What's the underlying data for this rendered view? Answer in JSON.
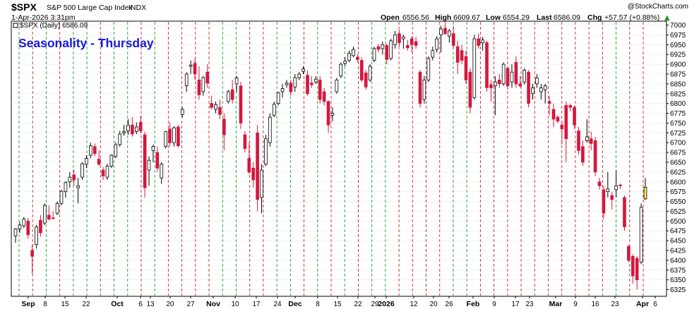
{
  "header": {
    "symbol": "$SPX",
    "name": "S&P 500 Large Cap Index",
    "exchange": "INDX",
    "datetime": "1-Apr-2026 3:31pm",
    "watermark": "@StockCharts.com",
    "quote": {
      "open_label": "Open",
      "open": "6556.56",
      "high_label": "High",
      "high": "6609.67",
      "low_label": "Low",
      "low": "6554.29",
      "last_label": "Last",
      "last": "6586.09",
      "chg_label": "Chg",
      "chg": "+57.57 (+0.88%)",
      "chg_arrow": "▲"
    }
  },
  "legend": {
    "label": "$SPX (Daily) 6586.09"
  },
  "chart_data": {
    "type": "candlestick",
    "title": "Seasonality - Thursday",
    "ylim": [
      6308,
      7010
    ],
    "yticks": [
      6325,
      6350,
      6375,
      6400,
      6425,
      6450,
      6475,
      6500,
      6525,
      6550,
      6575,
      6600,
      6625,
      6650,
      6675,
      6700,
      6725,
      6750,
      6775,
      6800,
      6825,
      6850,
      6875,
      6900,
      6925,
      6950,
      6975,
      7000
    ],
    "xticks": [
      {
        "label": "Sep",
        "bold": true
      },
      {
        "label": "8",
        "bold": false
      },
      {
        "label": "15",
        "bold": false
      },
      {
        "label": "22",
        "bold": false
      },
      {
        "label": "Oct",
        "bold": true
      },
      {
        "label": "6",
        "bold": false
      },
      {
        "label": "13",
        "bold": false
      },
      {
        "label": "20",
        "bold": false
      },
      {
        "label": "27",
        "bold": false
      },
      {
        "label": "Nov",
        "bold": true
      },
      {
        "label": "10",
        "bold": false
      },
      {
        "label": "17",
        "bold": false
      },
      {
        "label": "24",
        "bold": false
      },
      {
        "label": "Dec",
        "bold": true
      },
      {
        "label": "8",
        "bold": false
      },
      {
        "label": "15",
        "bold": false
      },
      {
        "label": "22",
        "bold": false
      },
      {
        "label": "29",
        "bold": false
      },
      {
        "label": "2026",
        "bold": true
      },
      {
        "label": "12",
        "bold": false
      },
      {
        "label": "20",
        "bold": false
      },
      {
        "label": "26",
        "bold": false
      },
      {
        "label": "Feb",
        "bold": true
      },
      {
        "label": "9",
        "bold": false
      },
      {
        "label": "17",
        "bold": false
      },
      {
        "label": "23",
        "bold": false
      },
      {
        "label": "Mar",
        "bold": true
      },
      {
        "label": "9",
        "bold": false
      },
      {
        "label": "16",
        "bold": false
      },
      {
        "label": "23",
        "bold": false
      },
      {
        "label": "Apr",
        "bold": true
      },
      {
        "label": "6",
        "bold": false
      }
    ],
    "colors": {
      "up": "#ffffff",
      "up_outline": "#000000",
      "down": "#d5173e",
      "highlight": "#ffe94d",
      "green_line": "#1e9a1e",
      "red_line": "#cc1f1f",
      "title": "#1a1ad6",
      "grid": "#d9d9d9"
    },
    "candles": [
      {
        "o": 6462,
        "h": 6482,
        "l": 6445,
        "c": 6480
      },
      {
        "o": 6480,
        "h": 6498,
        "l": 6470,
        "c": 6490
      },
      {
        "o": 6488,
        "h": 6510,
        "l": 6482,
        "c": 6505
      },
      {
        "o": 6500,
        "h": 6508,
        "l": 6455,
        "c": 6465
      },
      {
        "o": 6425,
        "h": 6440,
        "l": 6365,
        "c": 6410
      },
      {
        "o": 6440,
        "h": 6490,
        "l": 6430,
        "c": 6485
      },
      {
        "o": 6502,
        "h": 6515,
        "l": 6460,
        "c": 6470
      },
      {
        "o": 6495,
        "h": 6545,
        "l": 6490,
        "c": 6540
      },
      {
        "o": 6515,
        "h": 6540,
        "l": 6502,
        "c": 6505
      },
      {
        "o": 6508,
        "h": 6525,
        "l": 6505,
        "c": 6506
      },
      {
        "o": 6520,
        "h": 6550,
        "l": 6515,
        "c": 6545
      },
      {
        "o": 6545,
        "h": 6580,
        "l": 6540,
        "c": 6576
      },
      {
        "o": 6575,
        "h": 6602,
        "l": 6560,
        "c": 6598
      },
      {
        "o": 6600,
        "h": 6625,
        "l": 6585,
        "c": 6612
      },
      {
        "o": 6618,
        "h": 6632,
        "l": 6590,
        "c": 6605
      },
      {
        "o": 6585,
        "h": 6610,
        "l": 6545,
        "c": 6590
      },
      {
        "o": 6612,
        "h": 6650,
        "l": 6605,
        "c": 6646
      },
      {
        "o": 6645,
        "h": 6668,
        "l": 6635,
        "c": 6660
      },
      {
        "o": 6668,
        "h": 6700,
        "l": 6660,
        "c": 6692
      },
      {
        "o": 6690,
        "h": 6698,
        "l": 6665,
        "c": 6672
      },
      {
        "o": 6658,
        "h": 6680,
        "l": 6640,
        "c": 6645
      },
      {
        "o": 6630,
        "h": 6638,
        "l": 6605,
        "c": 6615
      },
      {
        "o": 6612,
        "h": 6646,
        "l": 6605,
        "c": 6640
      },
      {
        "o": 6640,
        "h": 6670,
        "l": 6635,
        "c": 6668
      },
      {
        "o": 6665,
        "h": 6700,
        "l": 6660,
        "c": 6695
      },
      {
        "o": 6695,
        "h": 6730,
        "l": 6690,
        "c": 6722
      },
      {
        "o": 6725,
        "h": 6745,
        "l": 6718,
        "c": 6728
      },
      {
        "o": 6730,
        "h": 6760,
        "l": 6720,
        "c": 6745
      },
      {
        "o": 6745,
        "h": 6765,
        "l": 6715,
        "c": 6722
      },
      {
        "o": 6728,
        "h": 6752,
        "l": 6722,
        "c": 6740
      },
      {
        "o": 6752,
        "h": 6768,
        "l": 6725,
        "c": 6730
      },
      {
        "o": 6720,
        "h": 6728,
        "l": 6560,
        "c": 6585
      },
      {
        "o": 6630,
        "h": 6665,
        "l": 6590,
        "c": 6655
      },
      {
        "o": 6680,
        "h": 6695,
        "l": 6650,
        "c": 6690
      },
      {
        "o": 6675,
        "h": 6690,
        "l": 6625,
        "c": 6635
      },
      {
        "o": 6610,
        "h": 6650,
        "l": 6595,
        "c": 6645
      },
      {
        "o": 6690,
        "h": 6730,
        "l": 6685,
        "c": 6728
      },
      {
        "o": 6735,
        "h": 6752,
        "l": 6690,
        "c": 6700
      },
      {
        "o": 6700,
        "h": 6742,
        "l": 6690,
        "c": 6738
      },
      {
        "o": 6740,
        "h": 6745,
        "l": 6688,
        "c": 6692
      },
      {
        "o": 6772,
        "h": 6790,
        "l": 6765,
        "c": 6785
      },
      {
        "o": 6845,
        "h": 6880,
        "l": 6830,
        "c": 6875
      },
      {
        "o": 6895,
        "h": 6910,
        "l": 6875,
        "c": 6898
      },
      {
        "o": 6902,
        "h": 6915,
        "l": 6860,
        "c": 6875
      },
      {
        "o": 6860,
        "h": 6895,
        "l": 6810,
        "c": 6822
      },
      {
        "o": 6830,
        "h": 6870,
        "l": 6820,
        "c": 6866
      },
      {
        "o": 6880,
        "h": 6900,
        "l": 6840,
        "c": 6852
      },
      {
        "o": 6800,
        "h": 6820,
        "l": 6785,
        "c": 6790
      },
      {
        "o": 6785,
        "h": 6805,
        "l": 6775,
        "c": 6797
      },
      {
        "o": 6790,
        "h": 6810,
        "l": 6760,
        "c": 6772
      },
      {
        "o": 6760,
        "h": 6775,
        "l": 6680,
        "c": 6720
      },
      {
        "o": 6805,
        "h": 6835,
        "l": 6800,
        "c": 6830
      },
      {
        "o": 6835,
        "h": 6860,
        "l": 6800,
        "c": 6810
      },
      {
        "o": 6850,
        "h": 6870,
        "l": 6830,
        "c": 6865
      },
      {
        "o": 6845,
        "h": 6855,
        "l": 6735,
        "c": 6750
      },
      {
        "o": 6720,
        "h": 6730,
        "l": 6675,
        "c": 6685
      },
      {
        "o": 6660,
        "h": 6700,
        "l": 6620,
        "c": 6625
      },
      {
        "o": 6635,
        "h": 6650,
        "l": 6585,
        "c": 6605
      },
      {
        "o": 6725,
        "h": 6745,
        "l": 6525,
        "c": 6555
      },
      {
        "o": 6560,
        "h": 6645,
        "l": 6520,
        "c": 6630
      },
      {
        "o": 6645,
        "h": 6720,
        "l": 6640,
        "c": 6710
      },
      {
        "o": 6700,
        "h": 6775,
        "l": 6690,
        "c": 6765
      },
      {
        "o": 6770,
        "h": 6805,
        "l": 6765,
        "c": 6798
      },
      {
        "o": 6800,
        "h": 6830,
        "l": 6795,
        "c": 6827
      },
      {
        "o": 6830,
        "h": 6850,
        "l": 6815,
        "c": 6838
      },
      {
        "o": 6848,
        "h": 6860,
        "l": 6840,
        "c": 6852
      },
      {
        "o": 6852,
        "h": 6860,
        "l": 6820,
        "c": 6830
      },
      {
        "o": 6842,
        "h": 6875,
        "l": 6830,
        "c": 6866
      },
      {
        "o": 6866,
        "h": 6880,
        "l": 6860,
        "c": 6875
      },
      {
        "o": 6882,
        "h": 6895,
        "l": 6875,
        "c": 6888
      },
      {
        "o": 6872,
        "h": 6885,
        "l": 6820,
        "c": 6825
      },
      {
        "o": 6852,
        "h": 6870,
        "l": 6840,
        "c": 6848
      },
      {
        "o": 6855,
        "h": 6870,
        "l": 6850,
        "c": 6862
      },
      {
        "o": 6860,
        "h": 6870,
        "l": 6800,
        "c": 6810
      },
      {
        "o": 6830,
        "h": 6840,
        "l": 6795,
        "c": 6805
      },
      {
        "o": 6805,
        "h": 6808,
        "l": 6725,
        "c": 6745
      },
      {
        "o": 6770,
        "h": 6790,
        "l": 6755,
        "c": 6775
      },
      {
        "o": 6830,
        "h": 6865,
        "l": 6825,
        "c": 6860
      },
      {
        "o": 6870,
        "h": 6905,
        "l": 6865,
        "c": 6900
      },
      {
        "o": 6902,
        "h": 6918,
        "l": 6895,
        "c": 6908
      },
      {
        "o": 6910,
        "h": 6935,
        "l": 6905,
        "c": 6928
      },
      {
        "o": 6922,
        "h": 6945,
        "l": 6918,
        "c": 6938
      },
      {
        "o": 6918,
        "h": 6925,
        "l": 6905,
        "c": 6912
      },
      {
        "o": 6910,
        "h": 6918,
        "l": 6855,
        "c": 6860
      },
      {
        "o": 6878,
        "h": 6885,
        "l": 6835,
        "c": 6842
      },
      {
        "o": 6860,
        "h": 6900,
        "l": 6855,
        "c": 6895
      },
      {
        "o": 6910,
        "h": 6945,
        "l": 6905,
        "c": 6940
      },
      {
        "o": 6945,
        "h": 6952,
        "l": 6930,
        "c": 6938
      },
      {
        "o": 6940,
        "h": 6958,
        "l": 6925,
        "c": 6950
      },
      {
        "o": 6948,
        "h": 6952,
        "l": 6900,
        "c": 6912
      },
      {
        "o": 6915,
        "h": 6965,
        "l": 6910,
        "c": 6960
      },
      {
        "o": 6950,
        "h": 6985,
        "l": 6940,
        "c": 6975
      },
      {
        "o": 6978,
        "h": 6988,
        "l": 6945,
        "c": 6955
      },
      {
        "o": 6965,
        "h": 6975,
        "l": 6940,
        "c": 6970
      },
      {
        "o": 6948,
        "h": 6962,
        "l": 6935,
        "c": 6942
      },
      {
        "o": 6965,
        "h": 6972,
        "l": 6930,
        "c": 6950
      },
      {
        "o": 6958,
        "h": 6970,
        "l": 6940,
        "c": 6948
      },
      {
        "o": 6880,
        "h": 6885,
        "l": 6790,
        "c": 6800
      },
      {
        "o": 6810,
        "h": 6870,
        "l": 6800,
        "c": 6860
      },
      {
        "o": 6860,
        "h": 6920,
        "l": 6855,
        "c": 6915
      },
      {
        "o": 6918,
        "h": 6945,
        "l": 6910,
        "c": 6935
      },
      {
        "o": 6938,
        "h": 6972,
        "l": 6930,
        "c": 6965
      },
      {
        "o": 6975,
        "h": 6998,
        "l": 6930,
        "c": 6990
      },
      {
        "o": 6992,
        "h": 7008,
        "l": 6975,
        "c": 6978
      },
      {
        "o": 6972,
        "h": 6990,
        "l": 6955,
        "c": 6985
      },
      {
        "o": 6978,
        "h": 6998,
        "l": 6940,
        "c": 6948
      },
      {
        "o": 6945,
        "h": 6960,
        "l": 6875,
        "c": 6905
      },
      {
        "o": 6935,
        "h": 6950,
        "l": 6900,
        "c": 6910
      },
      {
        "o": 6920,
        "h": 6935,
        "l": 6850,
        "c": 6860
      },
      {
        "o": 6880,
        "h": 6890,
        "l": 6775,
        "c": 6790
      },
      {
        "o": 6815,
        "h": 6975,
        "l": 6810,
        "c": 6965
      },
      {
        "o": 6965,
        "h": 6978,
        "l": 6940,
        "c": 6948
      },
      {
        "o": 6955,
        "h": 6970,
        "l": 6935,
        "c": 6962
      },
      {
        "o": 6955,
        "h": 6960,
        "l": 6830,
        "c": 6840
      },
      {
        "o": 6848,
        "h": 6860,
        "l": 6805,
        "c": 6840
      },
      {
        "o": 6845,
        "h": 6870,
        "l": 6770,
        "c": 6855
      },
      {
        "o": 6860,
        "h": 6875,
        "l": 6840,
        "c": 6850
      },
      {
        "o": 6850,
        "h": 6905,
        "l": 6845,
        "c": 6900
      },
      {
        "o": 6890,
        "h": 6895,
        "l": 6835,
        "c": 6845
      },
      {
        "o": 6855,
        "h": 6900,
        "l": 6840,
        "c": 6880
      },
      {
        "o": 6905,
        "h": 6920,
        "l": 6840,
        "c": 6850
      },
      {
        "o": 6850,
        "h": 6870,
        "l": 6840,
        "c": 6845
      },
      {
        "o": 6855,
        "h": 6890,
        "l": 6848,
        "c": 6885
      },
      {
        "o": 6880,
        "h": 6885,
        "l": 6790,
        "c": 6800
      },
      {
        "o": 6825,
        "h": 6850,
        "l": 6810,
        "c": 6840
      },
      {
        "o": 6850,
        "h": 6875,
        "l": 6840,
        "c": 6865
      },
      {
        "o": 6830,
        "h": 6850,
        "l": 6810,
        "c": 6840
      },
      {
        "o": 6835,
        "h": 6850,
        "l": 6800,
        "c": 6845
      },
      {
        "o": 6805,
        "h": 6820,
        "l": 6770,
        "c": 6800
      },
      {
        "o": 6785,
        "h": 6800,
        "l": 6740,
        "c": 6760
      },
      {
        "o": 6765,
        "h": 6770,
        "l": 6750,
        "c": 6755
      },
      {
        "o": 6745,
        "h": 6755,
        "l": 6695,
        "c": 6735
      },
      {
        "o": 6795,
        "h": 6805,
        "l": 6650,
        "c": 6710
      },
      {
        "o": 6795,
        "h": 6800,
        "l": 6780,
        "c": 6790
      },
      {
        "o": 6790,
        "h": 6795,
        "l": 6735,
        "c": 6745
      },
      {
        "o": 6730,
        "h": 6740,
        "l": 6670,
        "c": 6680
      },
      {
        "o": 6690,
        "h": 6705,
        "l": 6640,
        "c": 6650
      },
      {
        "o": 6705,
        "h": 6760,
        "l": 6700,
        "c": 6715
      },
      {
        "o": 6710,
        "h": 6728,
        "l": 6680,
        "c": 6698
      },
      {
        "o": 6705,
        "h": 6715,
        "l": 6615,
        "c": 6625
      },
      {
        "o": 6600,
        "h": 6610,
        "l": 6580,
        "c": 6590
      },
      {
        "o": 6580,
        "h": 6590,
        "l": 6505,
        "c": 6520
      },
      {
        "o": 6575,
        "h": 6625,
        "l": 6560,
        "c": 6582
      },
      {
        "o": 6565,
        "h": 6575,
        "l": 6530,
        "c": 6555
      },
      {
        "o": 6580,
        "h": 6630,
        "l": 6560,
        "c": 6590
      },
      {
        "o": 6592,
        "h": 6595,
        "l": 6582,
        "c": 6590
      },
      {
        "o": 6560,
        "h": 6565,
        "l": 6475,
        "c": 6485
      },
      {
        "o": 6435,
        "h": 6440,
        "l": 6395,
        "c": 6400
      },
      {
        "o": 6410,
        "h": 6415,
        "l": 6340,
        "c": 6360
      },
      {
        "o": 6405,
        "h": 6410,
        "l": 6325,
        "c": 6350
      },
      {
        "o": 6395,
        "h": 6545,
        "l": 6390,
        "c": 6535
      },
      {
        "o": 6556.56,
        "h": 6609.67,
        "l": 6554.29,
        "c": 6586.09,
        "highlight": true
      }
    ]
  }
}
